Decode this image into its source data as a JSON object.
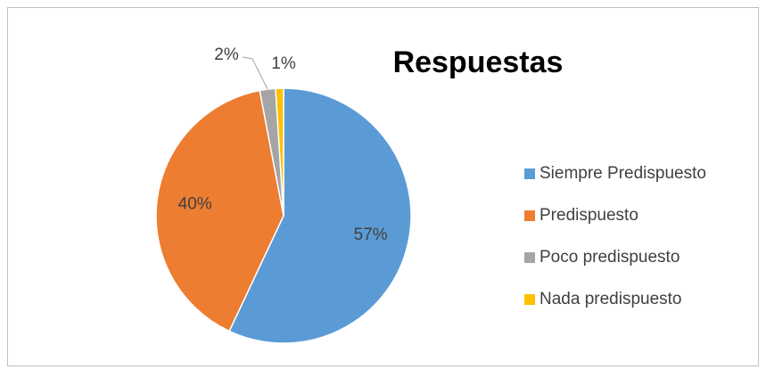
{
  "chart_data": {
    "type": "pie",
    "title": "Respuestas",
    "categories": [
      "Siempre Predispuesto",
      "Predispuesto",
      "Poco predispuesto",
      "Nada predispuesto"
    ],
    "values": [
      57,
      40,
      2,
      1
    ],
    "value_labels": [
      "57%",
      "40%",
      "2%",
      "1%"
    ],
    "colors": [
      "#5b9bd5",
      "#ed7d31",
      "#a5a5a5",
      "#ffc000"
    ],
    "legend": "right"
  }
}
